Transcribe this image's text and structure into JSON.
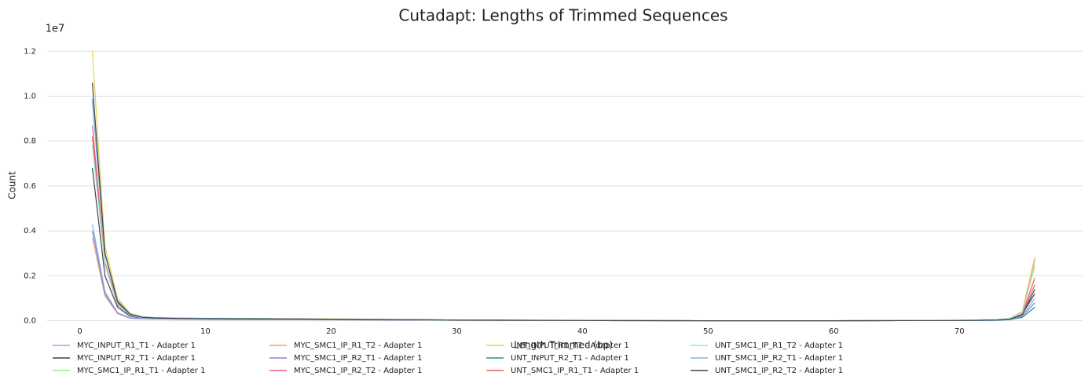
{
  "chart_data": {
    "type": "line",
    "title": "Cutadapt: Lengths of Trimmed Sequences",
    "x_label": "Length Trimmed (bp)",
    "y_label": "Count",
    "y_offset_label": "1e7",
    "x": [
      1,
      2,
      3,
      4,
      5,
      6,
      8,
      10,
      15,
      20,
      25,
      30,
      40,
      50,
      60,
      70,
      73,
      74,
      75,
      76
    ],
    "xlim": [
      -2.6,
      79.8
    ],
    "xticks": [
      0,
      10,
      20,
      30,
      40,
      50,
      60,
      70
    ],
    "ylim": [
      -0.005,
      1.25
    ],
    "yticks": [
      {
        "value": 0,
        "label": "0.0"
      },
      0.2,
      0.4,
      0.6,
      0.8,
      {
        "value": 1,
        "label": "1.0"
      },
      1.2
    ],
    "grid": true,
    "legend": "bottom",
    "series": [
      {
        "name": "MYC_INPUT_R1_T1 - Adapter 1",
        "color": "#7cb5ec",
        "values": [
          0.43,
          0.13,
          0.035,
          0.012,
          0.01,
          0.008,
          0.007,
          0.006,
          0.005,
          0.004,
          0.003,
          0.002,
          0.001,
          0,
          0,
          0.001,
          0.002,
          0.005,
          0.015,
          0.06
        ]
      },
      {
        "name": "MYC_INPUT_R2_T1 - Adapter 1",
        "color": "#434348",
        "values": [
          0.68,
          0.2,
          0.06,
          0.02,
          0.012,
          0.01,
          0.008,
          0.007,
          0.006,
          0.005,
          0.004,
          0.002,
          0.001,
          0,
          0,
          0.001,
          0.003,
          0.008,
          0.03,
          0.12
        ]
      },
      {
        "name": "MYC_SMC1_IP_R1_T1 - Adapter 1",
        "color": "#90ed7d",
        "values": [
          0.4,
          0.12,
          0.035,
          0.012,
          0.01,
          0.009,
          0.008,
          0.007,
          0.006,
          0.005,
          0.004,
          0.002,
          0.001,
          0,
          0,
          0.002,
          0.005,
          0.01,
          0.04,
          0.27
        ]
      },
      {
        "name": "MYC_SMC1_IP_R1_T2 - Adapter 1",
        "color": "#f7a35c",
        "values": [
          0.37,
          0.11,
          0.032,
          0.011,
          0.009,
          0.008,
          0.007,
          0.006,
          0.005,
          0.004,
          0.003,
          0.002,
          0.001,
          0,
          0,
          0.002,
          0.005,
          0.01,
          0.04,
          0.28
        ]
      },
      {
        "name": "MYC_SMC1_IP_R2_T1 - Adapter 1",
        "color": "#8085e9",
        "values": [
          0.4,
          0.12,
          0.035,
          0.012,
          0.009,
          0.008,
          0.007,
          0.006,
          0.005,
          0.004,
          0.003,
          0.002,
          0.001,
          0,
          0,
          0.001,
          0.003,
          0.006,
          0.02,
          0.08
        ]
      },
      {
        "name": "MYC_SMC1_IP_R2_T2 - Adapter 1",
        "color": "#f15c80",
        "values": [
          0.87,
          0.25,
          0.07,
          0.025,
          0.014,
          0.011,
          0.009,
          0.008,
          0.007,
          0.006,
          0.004,
          0.002,
          0.001,
          0,
          0,
          0.001,
          0.004,
          0.008,
          0.03,
          0.16
        ]
      },
      {
        "name": "UNT_INPUT_R1_T1 - Adapter 1",
        "color": "#e4d354",
        "values": [
          1.2,
          0.33,
          0.1,
          0.033,
          0.018,
          0.014,
          0.012,
          0.011,
          0.01,
          0.008,
          0.006,
          0.003,
          0.002,
          0,
          0,
          0.002,
          0.005,
          0.01,
          0.035,
          0.25
        ]
      },
      {
        "name": "UNT_INPUT_R2_T1 - Adapter 1",
        "color": "#2b908f",
        "values": [
          0.98,
          0.3,
          0.09,
          0.03,
          0.016,
          0.013,
          0.011,
          0.01,
          0.009,
          0.007,
          0.005,
          0.003,
          0.001,
          0,
          0,
          0.001,
          0.002,
          0.005,
          0.015,
          0.06
        ]
      },
      {
        "name": "UNT_SMC1_IP_R1_T1 - Adapter 1",
        "color": "#f45b5b",
        "values": [
          0.82,
          0.26,
          0.08,
          0.025,
          0.014,
          0.011,
          0.009,
          0.008,
          0.007,
          0.006,
          0.004,
          0.002,
          0.001,
          0,
          0,
          0.001,
          0.004,
          0.008,
          0.03,
          0.19
        ]
      },
      {
        "name": "UNT_SMC1_IP_R1_T2 - Adapter 1",
        "color": "#91e8e1",
        "values": [
          0.78,
          0.25,
          0.075,
          0.024,
          0.013,
          0.011,
          0.009,
          0.008,
          0.007,
          0.006,
          0.004,
          0.002,
          0.001,
          0,
          0,
          0.002,
          0.005,
          0.01,
          0.035,
          0.24
        ]
      },
      {
        "name": "UNT_SMC1_IP_R2_T1 - Adapter 1",
        "color": "#7cb5ec",
        "values": [
          0.99,
          0.3,
          0.09,
          0.03,
          0.016,
          0.013,
          0.011,
          0.01,
          0.009,
          0.007,
          0.005,
          0.003,
          0.001,
          0,
          0,
          0.001,
          0.003,
          0.006,
          0.02,
          0.1
        ]
      },
      {
        "name": "UNT_SMC1_IP_R2_T2 - Adapter 1",
        "color": "#434348",
        "values": [
          1.06,
          0.3,
          0.085,
          0.028,
          0.015,
          0.012,
          0.01,
          0.009,
          0.008,
          0.007,
          0.005,
          0.003,
          0.001,
          0,
          0,
          0.001,
          0.003,
          0.007,
          0.025,
          0.14
        ]
      }
    ]
  }
}
